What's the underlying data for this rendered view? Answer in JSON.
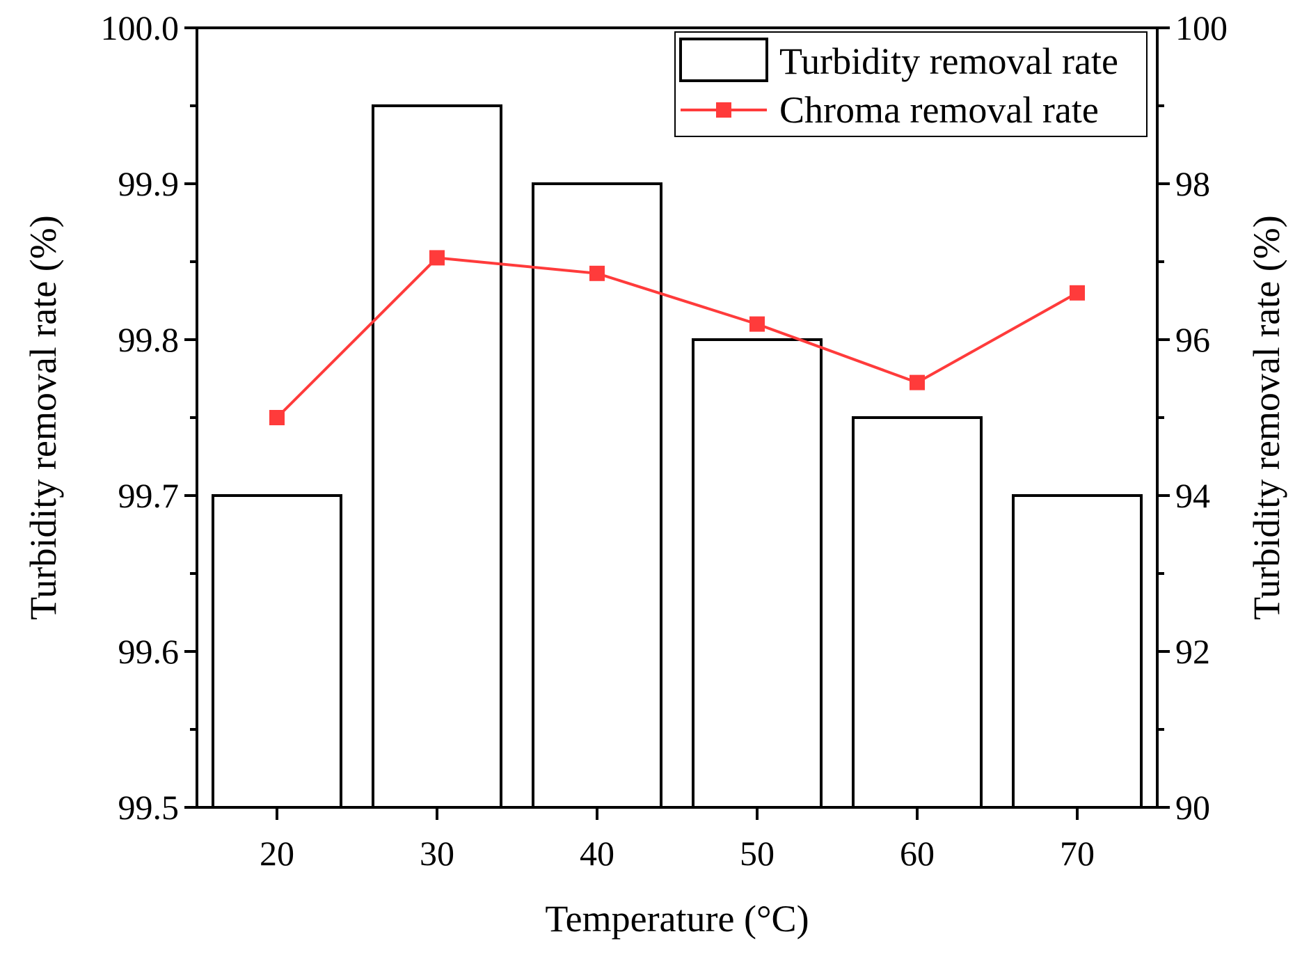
{
  "colors": {
    "axis": "#000000",
    "bar_fill": "#ffffff",
    "bar_stroke": "#000000",
    "line": "#ff3b3b",
    "background": "#ffffff"
  },
  "chart_data": {
    "type": "bar+line",
    "title": "",
    "xlabel": "Temperature (°C)",
    "ylabel_left": "Turbidity removal rate (%)",
    "ylabel_right": "Turbidity removal rate (%)",
    "categories": [
      20,
      30,
      40,
      50,
      60,
      70
    ],
    "x_tick_labels": [
      "20",
      "30",
      "40",
      "50",
      "60",
      "70"
    ],
    "xlim": [
      15,
      75
    ],
    "y_left": {
      "lim": [
        99.5,
        100.0
      ],
      "ticks": [
        99.5,
        99.6,
        99.7,
        99.8,
        99.9,
        100.0
      ],
      "tick_labels": [
        "99.5",
        "99.6",
        "99.7",
        "99.8",
        "99.9",
        "100.0"
      ]
    },
    "y_right": {
      "lim": [
        90,
        100
      ],
      "ticks": [
        90,
        92,
        94,
        96,
        98,
        100
      ],
      "tick_labels": [
        "90",
        "92",
        "94",
        "96",
        "98",
        "100"
      ]
    },
    "series": [
      {
        "name": "Turbidity removal rate",
        "kind": "bar",
        "axis": "left",
        "values": [
          99.7,
          99.95,
          99.9,
          99.8,
          99.75,
          99.7
        ]
      },
      {
        "name": "Chroma removal rate",
        "kind": "line",
        "axis": "right",
        "marker": "square",
        "values": [
          95.0,
          97.05,
          96.85,
          96.2,
          95.45,
          96.6
        ]
      }
    ],
    "legend": {
      "position": "top-right",
      "entries": [
        "Turbidity removal rate",
        "Chroma removal rate"
      ]
    },
    "grid": false
  }
}
